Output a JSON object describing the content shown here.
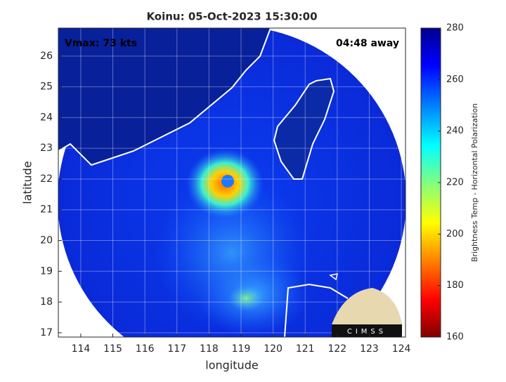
{
  "title": "Koinu: 05-Oct-2023 15:30:00",
  "annotations": {
    "vmax": "Vmax: 73 kts",
    "time_away": "04:48 away"
  },
  "map": {
    "x_label": "longitude",
    "y_label": "latitude",
    "xlim": [
      113.3,
      124.13
    ],
    "ylim": [
      16.86,
      26.91
    ],
    "xticks": [
      114,
      115,
      116,
      117,
      118,
      119,
      120,
      121,
      122,
      123,
      124
    ],
    "yticks": [
      17,
      18,
      19,
      20,
      21,
      22,
      23,
      24,
      25,
      26
    ],
    "grid": true
  },
  "colorbar": {
    "label": "Brightness Temp - Horizontal Polarization",
    "lim": [
      160,
      280
    ],
    "ticks": [
      160,
      180,
      200,
      220,
      240,
      260,
      280
    ]
  },
  "logo": {
    "text": "CIMSS"
  }
}
